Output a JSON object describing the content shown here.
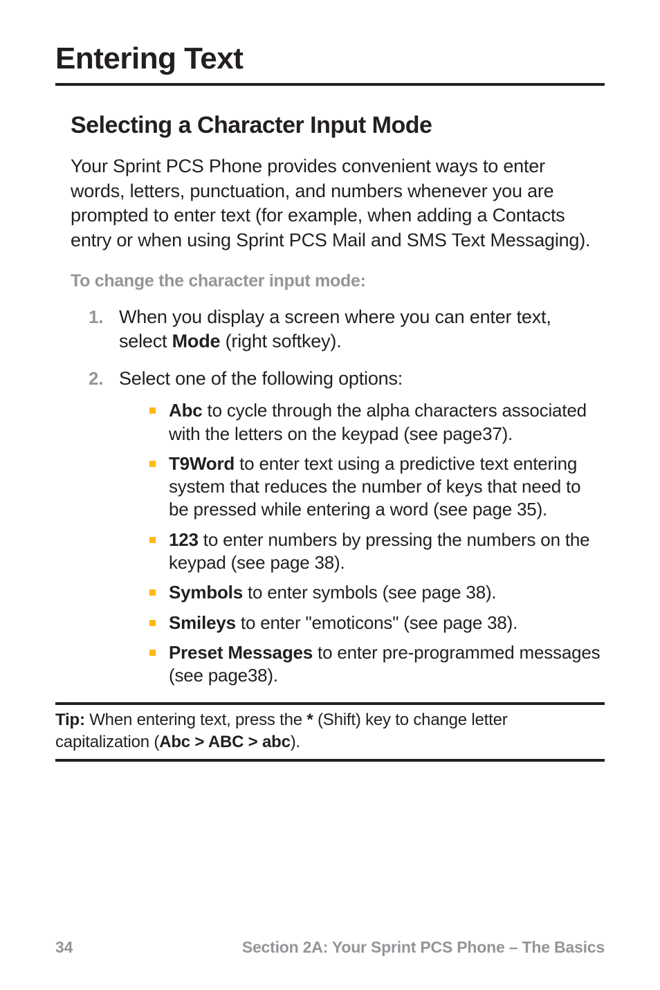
{
  "page": {
    "title": "Entering Text",
    "section_heading": "Selecting a Character Input Mode",
    "intro": "Your Sprint PCS Phone provides convenient ways to enter words, letters, punctuation, and numbers whenever you are prompted to enter text (for example, when adding a Contacts entry or when using Sprint PCS Mail and SMS Text Messaging).",
    "sub_heading": "To change the character input mode:",
    "steps": [
      {
        "num": "1.",
        "pre": "When you display a screen where you can enter text, select ",
        "bold": "Mode",
        "post": " (right softkey)."
      },
      {
        "num": "2.",
        "pre": "Select one of the following options:",
        "bold": "",
        "post": ""
      }
    ],
    "bullets": [
      {
        "bold": "Abc",
        "text": " to cycle through the alpha characters associated with the letters on the keypad (see page37)."
      },
      {
        "bold": "T9Word",
        "text": " to enter text using a predictive text entering system that reduces the number of keys that need to be pressed while entering a word (see page 35)."
      },
      {
        "bold": "123",
        "text": " to enter numbers by pressing the numbers on the keypad (see page 38)."
      },
      {
        "bold": "Symbols",
        "text": " to enter symbols (see page 38)."
      },
      {
        "bold": "Smileys",
        "text": " to enter \"emoticons\" (see page 38)."
      },
      {
        "bold": "Preset Messages",
        "text": " to enter pre-programmed messages (see page38)."
      }
    ],
    "tip": {
      "label": "Tip:",
      "pre": " When entering text, press the ",
      "key": "*",
      "mid": " (Shift) key to change letter capitalization (",
      "bold2": "Abc > ABC > abc",
      "post": ")."
    },
    "footer": {
      "page_num": "34",
      "section_label": "Section 2A: Your Sprint PCS Phone – The Basics"
    },
    "colors": {
      "text": "#231f20",
      "muted": "#939598",
      "accent": "#fdb913",
      "background": "#ffffff"
    },
    "typography": {
      "title_fontsize": 44,
      "heading_fontsize": 34,
      "body_fontsize": 27,
      "subheading_fontsize": 25,
      "bullet_fontsize": 26,
      "tip_fontsize": 24,
      "footer_fontsize": 23,
      "font_family": "Myriad Pro / sans-serif"
    }
  }
}
